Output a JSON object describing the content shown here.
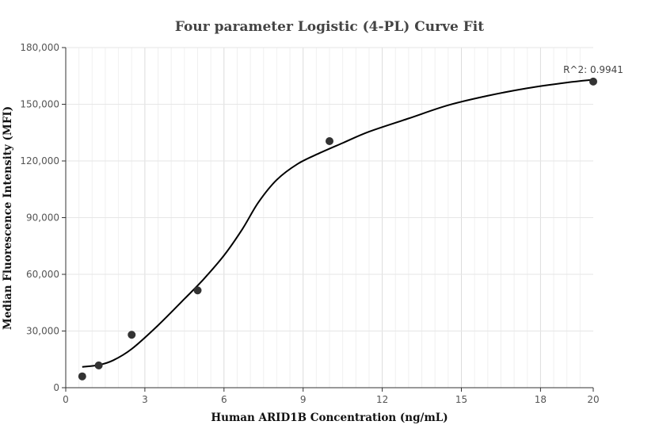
{
  "chart_data": {
    "type": "scatter",
    "title": "Four parameter Logistic (4-PL) Curve Fit",
    "xlabel": "Human ARID1B Concentration (ng/mL)",
    "ylabel": "Median Fluorescence Intensity (MFI)",
    "xlim": [
      0,
      20
    ],
    "ylim": [
      0,
      180000
    ],
    "x_ticks": [
      0,
      3,
      6,
      9,
      12,
      15,
      18,
      20
    ],
    "y_ticks": [
      0,
      30000,
      60000,
      90000,
      120000,
      150000,
      180000
    ],
    "x_tick_labels": [
      "0",
      "3",
      "6",
      "9",
      "12",
      "15",
      "18",
      "20"
    ],
    "y_tick_labels": [
      "0",
      "30,000",
      "60,000",
      "90,000",
      "120,000",
      "150,000",
      "180,000"
    ],
    "grid": true,
    "points": {
      "x": [
        0.625,
        1.25,
        2.5,
        5,
        10,
        20
      ],
      "y": [
        6000,
        11800,
        28000,
        51500,
        130500,
        162000
      ]
    },
    "fit_curve": {
      "x": [
        0.625,
        1.25,
        1.8,
        2.5,
        3.5,
        4.5,
        5.2,
        6.0,
        6.7,
        7.3,
        8.0,
        8.8,
        9.6,
        10.5,
        11.5,
        13.0,
        14.5,
        16.0,
        17.5,
        19.0,
        20.0
      ],
      "y": [
        11000,
        12000,
        14500,
        20500,
        33000,
        47000,
        57000,
        70000,
        84000,
        98000,
        110000,
        118500,
        124000,
        129500,
        135500,
        142500,
        149500,
        154500,
        158500,
        161500,
        163000
      ]
    },
    "annotation": "R^2: 0.9941",
    "colors": {
      "points": "#333333",
      "curve": "#000000",
      "grid": "#e6e6e6",
      "axis": "#333333"
    }
  }
}
